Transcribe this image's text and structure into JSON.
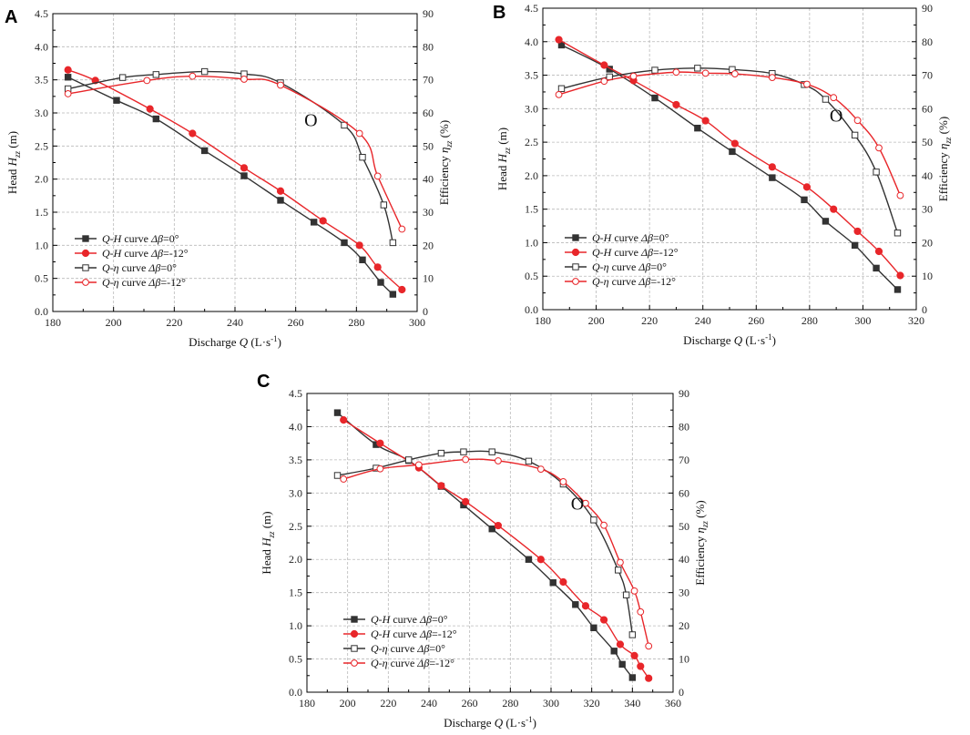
{
  "figure": {
    "width": 1065,
    "height": 807
  },
  "chart_data": [
    {
      "id": "A",
      "panel_label": "A",
      "type": "line",
      "xlabel_pre": "Discharge ",
      "xlabel_var": "Q",
      "xlabel_unit": " (L·s",
      "xlabel_sup": "-1",
      "xlabel_post": ")",
      "ylabel_pre": "Head ",
      "ylabel_var": "H",
      "ylabel_sub": "zz",
      "ylabel_post": " (m)",
      "y2label_pre": "Efficiency ",
      "y2label_var": "η",
      "y2label_sub": "zz",
      "y2label_post": " (%)",
      "xlim": [
        180,
        300
      ],
      "ylim": [
        0,
        4.5
      ],
      "y2lim": [
        0,
        90
      ],
      "xticks": [
        "180",
        "200",
        "220",
        "240",
        "260",
        "280",
        "300"
      ],
      "yticks": [
        "0.0",
        "0.5",
        "1.0",
        "1.5",
        "2.0",
        "2.5",
        "3.0",
        "3.5",
        "4.0",
        "4.5"
      ],
      "y2ticks": [
        "0",
        "10",
        "20",
        "30",
        "40",
        "50",
        "60",
        "70",
        "80",
        "90"
      ],
      "annotation": {
        "text": "O",
        "x": 265,
        "y2": 58
      },
      "series": [
        {
          "name": "Q-H curve Δβ=0°",
          "label_var": "Q-H",
          "label_mid": " curve ",
          "label_db": "Δβ",
          "label_val": "=0°",
          "axis": "left",
          "color": "#333333",
          "marker": "square-filled",
          "x": [
            185,
            201,
            214,
            230,
            243,
            255,
            266,
            276,
            282,
            288,
            292
          ],
          "y": [
            3.54,
            3.19,
            2.91,
            2.43,
            2.05,
            1.68,
            1.35,
            1.04,
            0.78,
            0.44,
            0.26
          ]
        },
        {
          "name": "Q-H curve Δβ=-12°",
          "label_var": "Q-H",
          "label_mid": " curve ",
          "label_db": "Δβ",
          "label_val": "=-12°",
          "axis": "left",
          "color": "#e8262a",
          "marker": "circle-filled",
          "x": [
            185,
            194,
            212,
            226,
            243,
            255,
            269,
            281,
            287,
            295
          ],
          "y": [
            3.65,
            3.49,
            3.06,
            2.69,
            2.17,
            1.82,
            1.37,
            1.0,
            0.67,
            0.33
          ]
        },
        {
          "name": "Q-η curve Δβ=0°",
          "label_var": "Q-η",
          "label_mid": " curve ",
          "label_db": "Δβ",
          "label_val": "=0°",
          "axis": "right",
          "color": "#333333",
          "marker": "square-open",
          "x": [
            185,
            203,
            214,
            230,
            243,
            255,
            276,
            282,
            289,
            292
          ],
          "y": [
            67.3,
            70.7,
            71.6,
            72.5,
            71.8,
            69.1,
            56.3,
            46.6,
            32.2,
            20.8
          ]
        },
        {
          "name": "Q-η curve Δβ=-12°",
          "label_var": "Q-η",
          "label_mid": " curve ",
          "label_db": "Δβ",
          "label_val": "=-12°",
          "axis": "right",
          "color": "#e8262a",
          "marker": "circle-open",
          "x": [
            185,
            211,
            226,
            243,
            255,
            281,
            287,
            295
          ],
          "y": [
            65.8,
            69.8,
            71.1,
            70.2,
            68.4,
            53.8,
            40.9,
            24.9
          ]
        }
      ]
    },
    {
      "id": "B",
      "panel_label": "B",
      "type": "line",
      "xlabel_pre": "Discharge ",
      "xlabel_var": "Q",
      "xlabel_unit": " (L·s",
      "xlabel_sup": "-1",
      "xlabel_post": ")",
      "ylabel_pre": "Head ",
      "ylabel_var": "H",
      "ylabel_sub": "zz",
      "ylabel_post": " (m)",
      "y2label_pre": "Efficiency ",
      "y2label_var": "η",
      "y2label_sub": "zz",
      "y2label_post": " (%)",
      "xlim": [
        180,
        320
      ],
      "ylim": [
        0,
        4.5
      ],
      "y2lim": [
        0,
        90
      ],
      "xticks": [
        "180",
        "200",
        "220",
        "240",
        "260",
        "280",
        "300",
        "320"
      ],
      "yticks": [
        "0.0",
        "0.5",
        "1.0",
        "1.5",
        "2.0",
        "2.5",
        "3.0",
        "3.5",
        "4.0",
        "4.5"
      ],
      "y2ticks": [
        "0",
        "10",
        "20",
        "30",
        "40",
        "50",
        "60",
        "70",
        "80",
        "90"
      ],
      "annotation": {
        "text": "O",
        "x": 290,
        "y2": 58
      },
      "series": [
        {
          "name": "Q-H curve Δβ=0°",
          "label_var": "Q-H",
          "label_mid": " curve ",
          "label_db": "Δβ",
          "label_val": "=0°",
          "axis": "left",
          "color": "#333333",
          "marker": "square-filled",
          "x": [
            187,
            205,
            222,
            238,
            251,
            266,
            278,
            286,
            297,
            305,
            313
          ],
          "y": [
            3.95,
            3.59,
            3.16,
            2.71,
            2.36,
            1.97,
            1.64,
            1.32,
            0.96,
            0.62,
            0.3
          ]
        },
        {
          "name": "Q-H curve Δβ=-12°",
          "label_var": "Q-H",
          "label_mid": " curve ",
          "label_db": "Δβ",
          "label_val": "=-12°",
          "axis": "left",
          "color": "#e8262a",
          "marker": "circle-filled",
          "x": [
            186,
            203,
            214,
            230,
            241,
            252,
            266,
            279,
            289,
            298,
            306,
            314
          ],
          "y": [
            4.03,
            3.65,
            3.42,
            3.06,
            2.82,
            2.48,
            2.13,
            1.83,
            1.5,
            1.17,
            0.87,
            0.51
          ]
        },
        {
          "name": "Q-η curve Δβ=0°",
          "label_var": "Q-η",
          "label_mid": " curve ",
          "label_db": "Δβ",
          "label_val": "=0°",
          "axis": "right",
          "color": "#333333",
          "marker": "square-open",
          "x": [
            187,
            205,
            222,
            238,
            251,
            266,
            278,
            286,
            297,
            305,
            313
          ],
          "y": [
            66,
            69.5,
            71.5,
            72.1,
            71.7,
            70.5,
            67.2,
            62.8,
            52.1,
            41.1,
            22.9
          ]
        },
        {
          "name": "Q-η curve Δβ=-12°",
          "label_var": "Q-η",
          "label_mid": " curve ",
          "label_db": "Δβ",
          "label_val": "=-12°",
          "axis": "right",
          "color": "#e8262a",
          "marker": "circle-open",
          "x": [
            186,
            203,
            214,
            230,
            241,
            252,
            266,
            279,
            289,
            298,
            306,
            314
          ],
          "y": [
            64.2,
            68.2,
            69.7,
            70.9,
            70.6,
            70.4,
            69.3,
            67.3,
            63.3,
            56.5,
            48.3,
            34.1
          ]
        }
      ]
    },
    {
      "id": "C",
      "panel_label": "C",
      "type": "line",
      "xlabel_pre": "Discharge ",
      "xlabel_var": "Q",
      "xlabel_unit": " (L·s",
      "xlabel_sup": "-1",
      "xlabel_post": ")",
      "ylabel_pre": "Head ",
      "ylabel_var": "H",
      "ylabel_sub": "zz",
      "ylabel_post": " (m)",
      "y2label_pre": "Efficiency ",
      "y2label_var": "η",
      "y2label_sub": "zz",
      "y2label_post": " (%)",
      "xlim": [
        180,
        360
      ],
      "ylim": [
        0,
        4.5
      ],
      "y2lim": [
        0,
        90
      ],
      "xticks": [
        "180",
        "200",
        "220",
        "240",
        "260",
        "280",
        "300",
        "320",
        "340",
        "360"
      ],
      "yticks": [
        "0.0",
        "0.5",
        "1.0",
        "1.5",
        "2.0",
        "2.5",
        "3.0",
        "3.5",
        "4.0",
        "4.5"
      ],
      "y2ticks": [
        "0",
        "10",
        "20",
        "30",
        "40",
        "50",
        "60",
        "70",
        "80",
        "90"
      ],
      "annotation": {
        "text": "O",
        "x": 313,
        "y2": 57
      },
      "series": [
        {
          "name": "Q-H curve Δβ=0°",
          "label_var": "Q-H",
          "label_mid": " curve ",
          "label_db": "Δβ",
          "label_val": "=0°",
          "axis": "left",
          "color": "#333333",
          "marker": "square-filled",
          "x": [
            195,
            214,
            230,
            246,
            257,
            271,
            289,
            301,
            312,
            321,
            331,
            335,
            340
          ],
          "y": [
            4.21,
            3.73,
            3.49,
            3.1,
            2.82,
            2.46,
            2.0,
            1.65,
            1.32,
            0.97,
            0.62,
            0.42,
            0.22
          ]
        },
        {
          "name": "Q-H curve Δβ=-12°",
          "label_var": "Q-H",
          "label_mid": " curve ",
          "label_db": "Δβ",
          "label_val": "=-12°",
          "axis": "left",
          "color": "#e8262a",
          "marker": "circle-filled",
          "x": [
            198,
            216,
            235,
            246,
            258,
            274,
            295,
            306,
            317,
            326,
            334,
            341,
            344,
            348
          ],
          "y": [
            4.1,
            3.75,
            3.38,
            3.11,
            2.87,
            2.51,
            2.0,
            1.66,
            1.3,
            1.09,
            0.72,
            0.55,
            0.39,
            0.21
          ]
        },
        {
          "name": "Q-η curve Δβ=0°",
          "label_var": "Q-η",
          "label_mid": " curve ",
          "label_db": "Δβ",
          "label_val": "=0°",
          "axis": "right",
          "color": "#333333",
          "marker": "square-open",
          "x": [
            195,
            214,
            230,
            246,
            257,
            271,
            289,
            306,
            321,
            333,
            337,
            340
          ],
          "y": [
            65.3,
            67.5,
            70,
            72,
            72.4,
            72.4,
            69.6,
            62.7,
            51.9,
            36.8,
            29.3,
            17.3
          ]
        },
        {
          "name": "Q-η curve Δβ=-12°",
          "label_var": "Q-η",
          "label_mid": " curve ",
          "label_db": "Δβ",
          "label_val": "=-12°",
          "axis": "right",
          "color": "#e8262a",
          "marker": "circle-open",
          "x": [
            198,
            216,
            235,
            258,
            274,
            295,
            306,
            317,
            326,
            334,
            341,
            344,
            348
          ],
          "y": [
            64.2,
            67.3,
            68.5,
            70.1,
            69.7,
            67.2,
            63.4,
            56.9,
            50.3,
            39.1,
            30.5,
            24.2,
            13.9
          ]
        }
      ]
    }
  ]
}
